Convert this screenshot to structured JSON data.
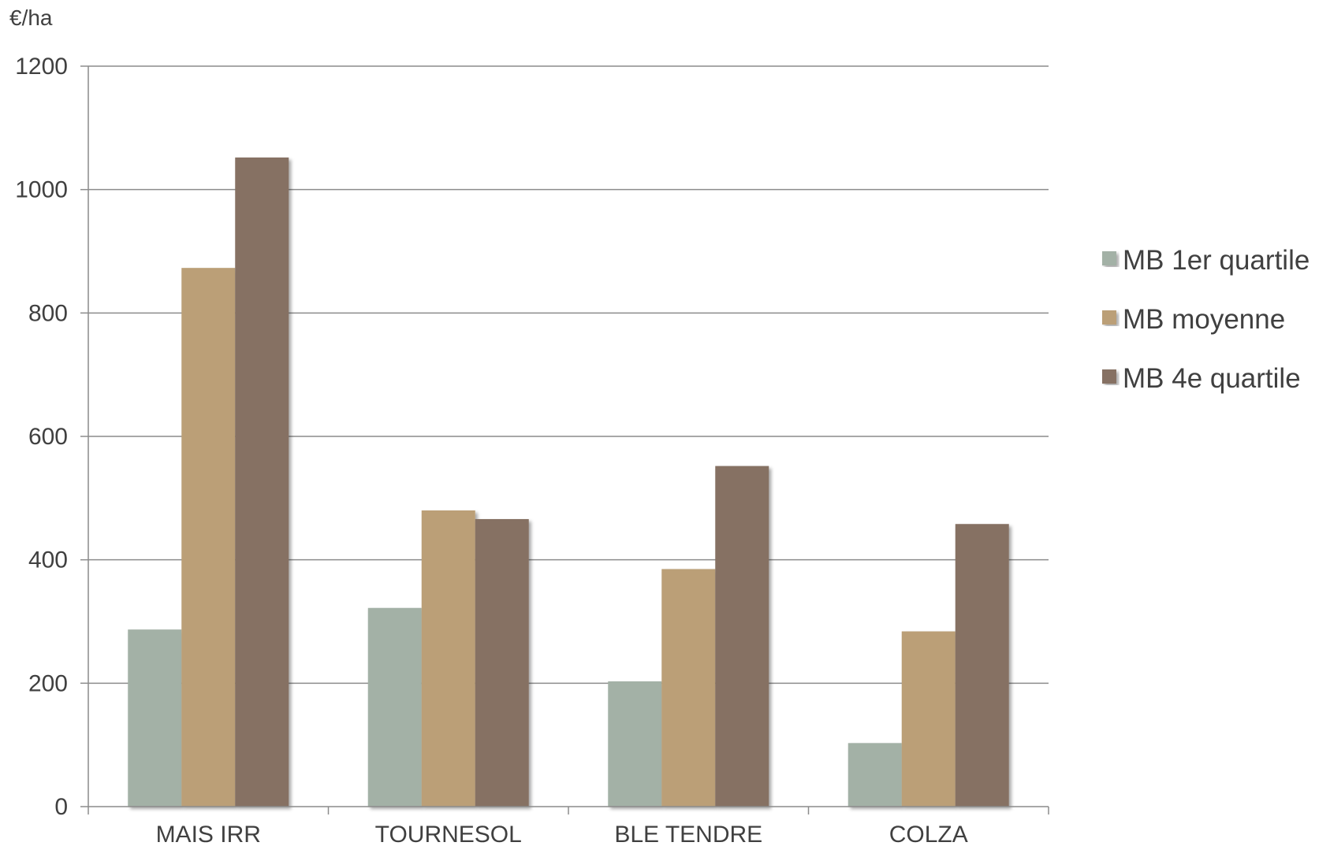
{
  "chart_data": {
    "type": "bar",
    "title": "",
    "xlabel": "",
    "ylabel": "€/ha",
    "ylim": [
      0,
      1200
    ],
    "y_ticks": [
      0,
      200,
      400,
      600,
      800,
      1000,
      1200
    ],
    "grid": true,
    "legend_position": "right",
    "categories": [
      "MAIS IRR",
      "TOURNESOL",
      "BLE TENDRE",
      "COLZA"
    ],
    "series": [
      {
        "name": "MB 1er quartile",
        "color": "#a3b1a6",
        "values": [
          287,
          322,
          203,
          103
        ]
      },
      {
        "name": "MB moyenne",
        "color": "#bb9f77",
        "values": [
          873,
          480,
          385,
          284
        ]
      },
      {
        "name": "MB 4e quartile",
        "color": "#867164",
        "values": [
          1052,
          466,
          552,
          458
        ]
      }
    ]
  }
}
